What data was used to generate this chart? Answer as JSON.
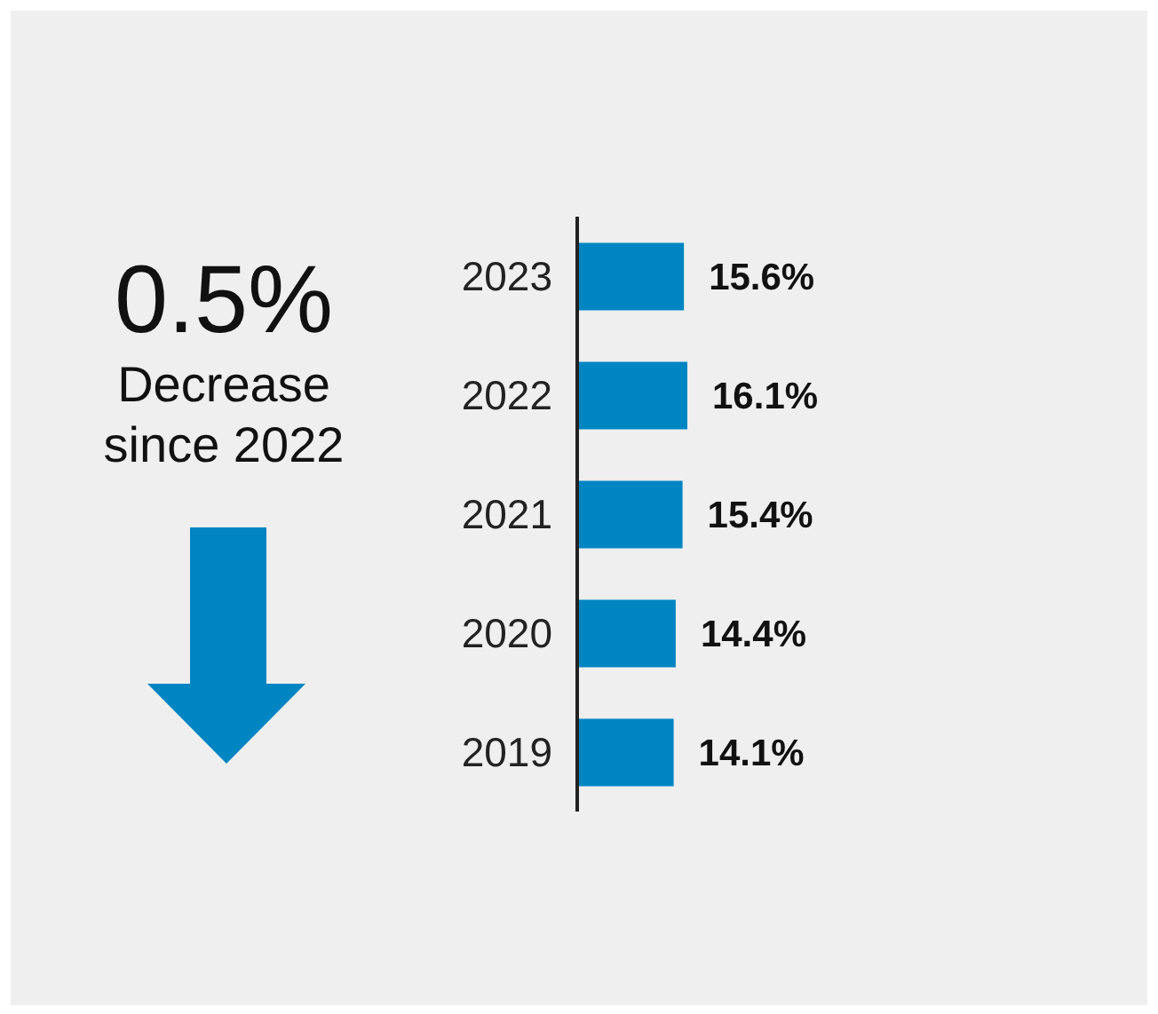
{
  "chart_data": {
    "type": "bar",
    "orientation": "horizontal",
    "categories": [
      "2023",
      "2022",
      "2021",
      "2020",
      "2019"
    ],
    "values": [
      15.6,
      16.1,
      15.4,
      14.4,
      14.1
    ],
    "value_labels": [
      "15.6%",
      "16.1%",
      "15.4%",
      "14.4%",
      "14.1%"
    ],
    "color": "#0085c3",
    "annotations": [
      "0.5%",
      "Decrease since 2022"
    ]
  }
}
